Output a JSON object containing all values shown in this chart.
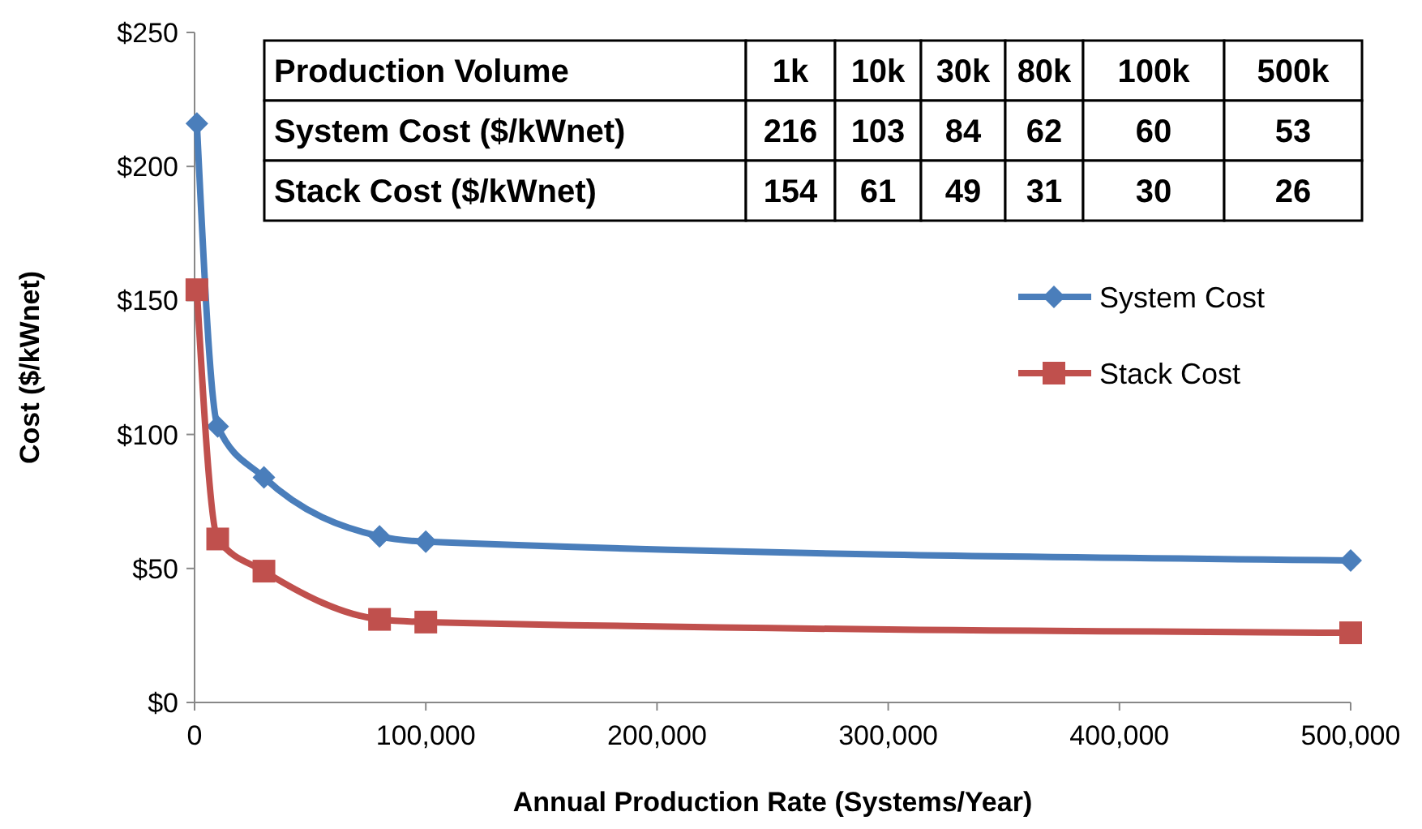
{
  "chart_data": {
    "type": "line",
    "xlabel": "Annual Production Rate (Systems/Year)",
    "ylabel": "Cost ($/kWnet)",
    "x": [
      1000,
      10000,
      30000,
      80000,
      100000,
      500000
    ],
    "series": [
      {
        "name": "System Cost",
        "color": "#4a7ebb",
        "marker": "diamond",
        "values": [
          216,
          103,
          84,
          62,
          60,
          53
        ]
      },
      {
        "name": "Stack Cost",
        "color": "#c0504d",
        "marker": "square",
        "values": [
          154,
          61,
          49,
          31,
          30,
          26
        ]
      }
    ],
    "xlim": [
      0,
      500000
    ],
    "xticks": [
      0,
      {
        "value": 100000,
        "label": "100,000"
      },
      {
        "value": 200000,
        "label": "200,000"
      },
      {
        "value": 300000,
        "label": "300,000"
      },
      {
        "value": 400000,
        "label": "400,000"
      },
      {
        "value": 500000,
        "label": "500,000"
      }
    ],
    "ylim": [
      0,
      250
    ],
    "yticks": [
      {
        "value": 0,
        "label": "$0"
      },
      {
        "value": 50,
        "label": "$50"
      },
      {
        "value": 100,
        "label": "$100"
      },
      {
        "value": 150,
        "label": "$150"
      },
      {
        "value": 200,
        "label": "$200"
      },
      {
        "value": 250,
        "label": "$250"
      }
    ],
    "grid": false,
    "legend": "right",
    "annotations": [
      "Production Volume",
      "1k",
      "10k",
      "30k",
      "80k",
      "100k",
      "500k",
      "System Cost ($/kWnet)",
      "216",
      "103",
      "84",
      "62",
      "60",
      "53",
      "Stack Cost ($/kWnet)",
      "154",
      "61",
      "49",
      "31",
      "30",
      "26"
    ]
  }
}
